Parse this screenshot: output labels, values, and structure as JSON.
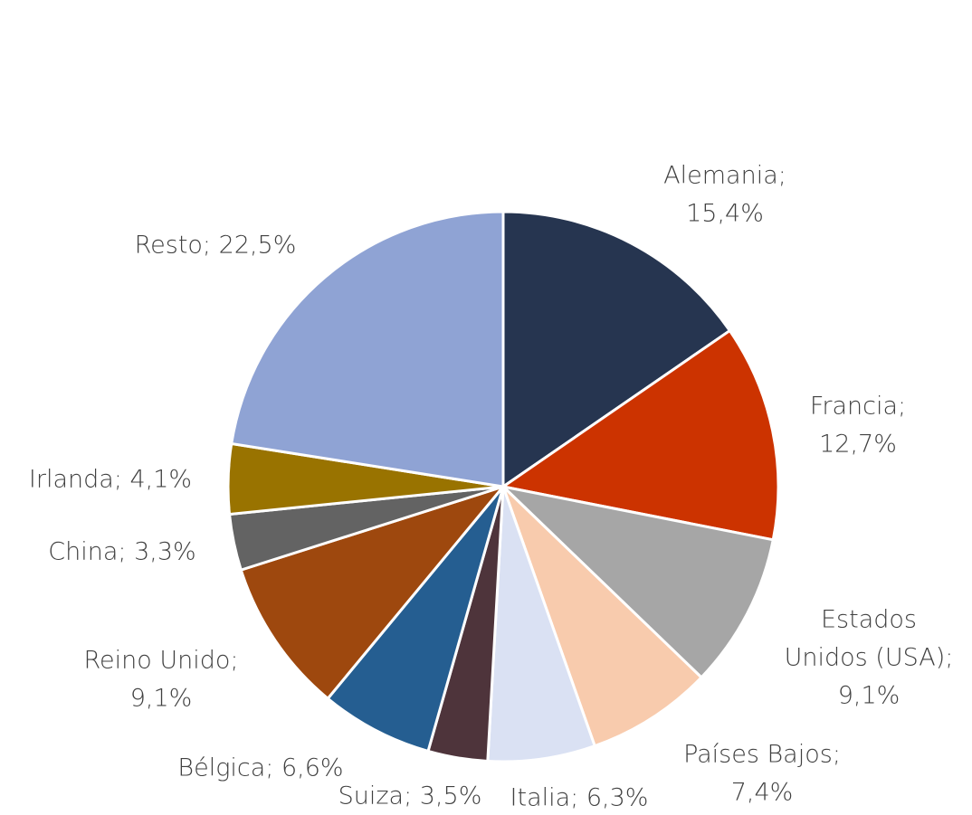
{
  "chart_data": {
    "type": "pie",
    "values": [
      15.4,
      12.7,
      9.1,
      7.4,
      6.3,
      3.5,
      6.6,
      9.1,
      3.3,
      4.1,
      22.5
    ],
    "value_labels": [
      [
        "Alemania;",
        "15,4%"
      ],
      [
        "Francia;",
        "12,7%"
      ],
      [
        "Estados",
        "Unidos (USA);",
        "9,1%"
      ],
      [
        "Países Bajos;",
        "7,4%"
      ],
      [
        "Italia; 6,3%"
      ],
      [
        "Suiza; 3,5%"
      ],
      [
        "Bélgica; 6,6%"
      ],
      [
        "Reino Unido;",
        "9,1%"
      ],
      [
        "China;  3,3%"
      ],
      [
        "Irlanda; 4,1%"
      ],
      [
        "Resto; 22,5%"
      ]
    ],
    "colors": [
      "#263550",
      "#cc3300",
      "#a6a6a6",
      "#f8cbad",
      "#dae1f3",
      "#4e343b",
      "#255e91",
      "#9e480e",
      "#636363",
      "#997300",
      "#8fa3d4"
    ]
  }
}
